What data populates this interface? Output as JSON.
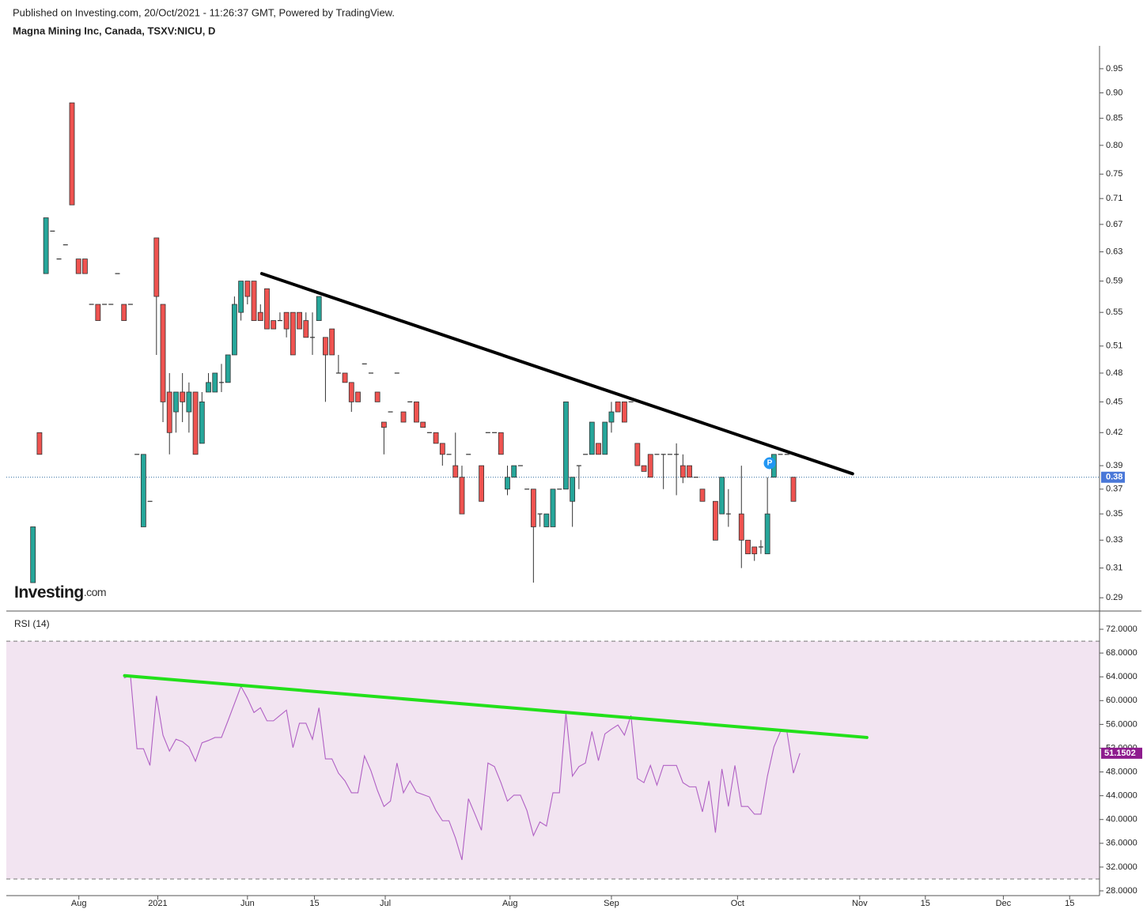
{
  "header": {
    "published": "Published on Investing.com, 20/Oct/2021 - 11:26:37 GMT, Powered by TradingView.",
    "title": "Magna Mining Inc, Canada, TSXV:NICU, D"
  },
  "logo": {
    "main": "Investing",
    "suffix": ".com"
  },
  "chart_data": [
    {
      "type": "candlestick",
      "log_scale": true,
      "up_color": "#26a69a",
      "down_color": "#ef5350",
      "xlim": [
        -4.1,
        164.1
      ],
      "ylim": [
        0.285,
        1.0
      ],
      "yticks": [
        0.95,
        {
          "value": 0.9,
          "label": "0.90"
        },
        0.85,
        {
          "value": 0.8,
          "label": "0.80"
        },
        0.75,
        0.71,
        0.67,
        0.63,
        0.59,
        0.55,
        0.51,
        0.48,
        0.45,
        0.42,
        0.39,
        0.37,
        0.35,
        0.33,
        0.31,
        0.29
      ],
      "x": [
        0,
        1,
        2,
        3,
        4,
        5,
        6,
        7,
        8,
        9,
        10,
        11,
        12,
        13,
        14,
        15,
        16,
        17,
        18,
        19,
        20,
        21,
        22,
        23,
        24,
        25,
        26,
        27,
        28,
        29,
        30,
        31,
        32,
        33,
        34,
        35,
        36,
        37,
        38,
        39,
        40,
        41,
        42,
        43,
        44,
        45,
        46,
        47,
        48,
        49,
        50,
        51,
        52,
        53,
        54,
        55,
        56,
        57,
        58,
        59,
        60,
        61,
        62,
        63,
        64,
        65,
        66,
        67,
        69,
        70,
        71,
        72,
        73,
        74,
        75,
        76,
        77,
        78,
        79,
        80,
        81,
        82,
        83,
        84,
        85,
        86,
        87,
        88,
        89,
        90,
        91,
        92,
        93,
        94,
        95,
        96,
        97,
        98,
        99,
        100,
        101,
        102,
        103,
        105,
        106,
        107,
        109,
        110,
        111,
        112,
        113,
        114,
        115,
        116,
        117
      ],
      "open": [
        0.3,
        0.42,
        0.6,
        0.66,
        0.62,
        0.64,
        0.88,
        0.62,
        0.62,
        0.56,
        0.56,
        0.56,
        0.56,
        0.6,
        0.56,
        0.56,
        0.4,
        0.34,
        0.36,
        0.65,
        0.56,
        0.46,
        0.44,
        0.46,
        0.44,
        0.46,
        0.41,
        0.46,
        0.46,
        0.47,
        0.47,
        0.5,
        0.55,
        0.59,
        0.59,
        0.55,
        0.58,
        0.54,
        0.54,
        0.55,
        0.55,
        0.55,
        0.54,
        0.52,
        0.54,
        0.52,
        0.53,
        0.48,
        0.48,
        0.47,
        0.46,
        0.49,
        0.48,
        0.46,
        0.43,
        0.44,
        0.48,
        0.44,
        0.45,
        0.45,
        0.43,
        0.42,
        0.42,
        0.41,
        0.4,
        0.39,
        0.38,
        0.4,
        0.39,
        0.42,
        0.42,
        0.42,
        0.37,
        0.38,
        0.39,
        0.37,
        0.37,
        0.35,
        0.34,
        0.34,
        0.37,
        0.37,
        0.36,
        0.39,
        0.4,
        0.4,
        0.41,
        0.4,
        0.43,
        0.45,
        0.45,
        0.45,
        0.41,
        0.39,
        0.4,
        0.4,
        0.4,
        0.4,
        0.4,
        0.39,
        0.39,
        0.38,
        0.37,
        0.36,
        0.35,
        0.35,
        0.35,
        0.33,
        0.325,
        0.325,
        0.32,
        0.38,
        0.4,
        0.4,
        0.38
      ],
      "high": [
        0.34,
        0.42,
        0.68,
        0.66,
        0.62,
        0.64,
        0.88,
        0.62,
        0.62,
        0.56,
        0.56,
        0.56,
        0.56,
        0.6,
        0.56,
        0.56,
        0.4,
        0.4,
        0.36,
        0.65,
        0.56,
        0.48,
        0.46,
        0.48,
        0.47,
        0.46,
        0.46,
        0.48,
        0.48,
        0.49,
        0.5,
        0.57,
        0.59,
        0.59,
        0.59,
        0.56,
        0.58,
        0.54,
        0.55,
        0.55,
        0.55,
        0.55,
        0.55,
        0.55,
        0.57,
        0.52,
        0.53,
        0.5,
        0.48,
        0.47,
        0.46,
        0.49,
        0.48,
        0.46,
        0.43,
        0.44,
        0.48,
        0.44,
        0.45,
        0.45,
        0.43,
        0.42,
        0.42,
        0.41,
        0.4,
        0.42,
        0.39,
        0.4,
        0.39,
        0.42,
        0.42,
        0.42,
        0.39,
        0.39,
        0.39,
        0.37,
        0.37,
        0.35,
        0.35,
        0.37,
        0.37,
        0.45,
        0.38,
        0.39,
        0.4,
        0.43,
        0.41,
        0.43,
        0.45,
        0.45,
        0.45,
        0.45,
        0.41,
        0.39,
        0.4,
        0.4,
        0.4,
        0.4,
        0.41,
        0.4,
        0.39,
        0.38,
        0.37,
        0.36,
        0.38,
        0.37,
        0.39,
        0.33,
        0.325,
        0.33,
        0.38,
        0.4,
        0.4,
        0.4,
        0.38
      ],
      "low": [
        0.3,
        0.4,
        0.6,
        0.66,
        0.62,
        0.64,
        0.7,
        0.6,
        0.6,
        0.56,
        0.54,
        0.56,
        0.56,
        0.6,
        0.54,
        0.56,
        0.4,
        0.34,
        0.36,
        0.5,
        0.43,
        0.4,
        0.42,
        0.43,
        0.42,
        0.4,
        0.41,
        0.46,
        0.46,
        0.46,
        0.47,
        0.5,
        0.54,
        0.56,
        0.54,
        0.54,
        0.53,
        0.53,
        0.54,
        0.52,
        0.5,
        0.53,
        0.52,
        0.5,
        0.54,
        0.45,
        0.5,
        0.48,
        0.47,
        0.44,
        0.45,
        0.49,
        0.48,
        0.45,
        0.4,
        0.44,
        0.48,
        0.43,
        0.45,
        0.43,
        0.425,
        0.42,
        0.41,
        0.39,
        0.4,
        0.38,
        0.35,
        0.4,
        0.36,
        0.42,
        0.42,
        0.4,
        0.365,
        0.38,
        0.39,
        0.37,
        0.3,
        0.34,
        0.34,
        0.34,
        0.37,
        0.37,
        0.34,
        0.37,
        0.4,
        0.4,
        0.4,
        0.4,
        0.42,
        0.44,
        0.43,
        0.45,
        0.39,
        0.385,
        0.38,
        0.4,
        0.37,
        0.4,
        0.365,
        0.375,
        0.38,
        0.38,
        0.36,
        0.33,
        0.35,
        0.34,
        0.31,
        0.32,
        0.315,
        0.32,
        0.32,
        0.38,
        0.4,
        0.4,
        0.36
      ],
      "close": [
        0.34,
        0.4,
        0.68,
        0.66,
        0.62,
        0.64,
        0.7,
        0.6,
        0.6,
        0.56,
        0.54,
        0.56,
        0.56,
        0.6,
        0.54,
        0.56,
        0.4,
        0.4,
        0.36,
        0.57,
        0.45,
        0.42,
        0.46,
        0.45,
        0.46,
        0.4,
        0.45,
        0.47,
        0.48,
        0.47,
        0.5,
        0.56,
        0.59,
        0.57,
        0.54,
        0.54,
        0.53,
        0.53,
        0.54,
        0.53,
        0.5,
        0.53,
        0.52,
        0.52,
        0.57,
        0.5,
        0.5,
        0.48,
        0.47,
        0.45,
        0.45,
        0.49,
        0.48,
        0.45,
        0.425,
        0.44,
        0.48,
        0.43,
        0.45,
        0.43,
        0.425,
        0.42,
        0.41,
        0.4,
        0.4,
        0.38,
        0.35,
        0.4,
        0.36,
        0.42,
        0.42,
        0.4,
        0.38,
        0.39,
        0.39,
        0.37,
        0.34,
        0.35,
        0.35,
        0.37,
        0.37,
        0.45,
        0.38,
        0.39,
        0.4,
        0.43,
        0.4,
        0.43,
        0.44,
        0.44,
        0.43,
        0.45,
        0.39,
        0.385,
        0.38,
        0.4,
        0.4,
        0.4,
        0.4,
        0.38,
        0.38,
        0.38,
        0.36,
        0.33,
        0.38,
        0.35,
        0.33,
        0.32,
        0.32,
        0.325,
        0.35,
        0.4,
        0.4,
        0.4,
        0.36
      ],
      "trendline": {
        "x": [
          35.2,
          126.1
        ],
        "y": [
          0.6,
          0.383
        ],
        "color": "#000000"
      },
      "last_price": 0.38,
      "last_price_color": "#4a78d8",
      "marker_label": "P"
    },
    {
      "type": "line",
      "title": "RSI (14)",
      "xlim": [
        -4.1,
        164.1
      ],
      "ylim": [
        27.6,
        74.4
      ],
      "xticks": [
        {
          "value": 7.06,
          "label": "Aug"
        },
        {
          "value": 19.2,
          "label": "2021"
        },
        {
          "value": 33,
          "label": "Jun"
        },
        {
          "value": 43.3,
          "label": "15"
        },
        {
          "value": 54.2,
          "label": "Jul"
        },
        {
          "value": 73.4,
          "label": "Aug"
        },
        {
          "value": 89,
          "label": "Sep"
        },
        {
          "value": 108.4,
          "label": "Oct"
        },
        {
          "value": 127.2,
          "label": "Nov"
        },
        {
          "value": 137.3,
          "label": "15"
        },
        {
          "value": 149.3,
          "label": "Dec"
        },
        {
          "value": 159.5,
          "label": "15"
        }
      ],
      "yticks": [
        {
          "value": 72,
          "label": "72.0000"
        },
        {
          "value": 68,
          "label": "68.0000"
        },
        {
          "value": 64,
          "label": "64.0000"
        },
        {
          "value": 60,
          "label": "60.0000"
        },
        {
          "value": 56,
          "label": "56.0000"
        },
        {
          "value": 52,
          "label": "52.0000"
        },
        {
          "value": 48,
          "label": "48.0000"
        },
        {
          "value": 44,
          "label": "44.0000"
        },
        {
          "value": 40,
          "label": "40.0000"
        },
        {
          "value": 36,
          "label": "36.0000"
        },
        {
          "value": 32,
          "label": "32.0000"
        },
        {
          "value": 28,
          "label": "28.0000"
        }
      ],
      "bands": [
        30,
        70
      ],
      "band_color": "#f2e4f1",
      "x": [
        14,
        15,
        16,
        17,
        18,
        19,
        20,
        21,
        22,
        23,
        24,
        25,
        26,
        27,
        28,
        29,
        30,
        31,
        32,
        33,
        34,
        35,
        36,
        37,
        38,
        39,
        40,
        41,
        42,
        43,
        44,
        45,
        46,
        47,
        48,
        49,
        50,
        51,
        52,
        53,
        54,
        55,
        56,
        57,
        58,
        59,
        60,
        61,
        62,
        63,
        64,
        65,
        66,
        67,
        68,
        69,
        70,
        71,
        72,
        73,
        74,
        75,
        76,
        77,
        78,
        79,
        80,
        81,
        82,
        83,
        84,
        85,
        86,
        87,
        88,
        89,
        90,
        91,
        92,
        93,
        94,
        95,
        96,
        97,
        98,
        99,
        100,
        101,
        102,
        103,
        104,
        105,
        106,
        107,
        108,
        109,
        110,
        111,
        112,
        113,
        114,
        115,
        116,
        117,
        118
      ],
      "series": [
        {
          "color": "#b060c4",
          "values": [
            63.8,
            64.2,
            51.9,
            51.9,
            49.1,
            60.8,
            54.2,
            51.5,
            53.5,
            53.1,
            52.2,
            49.8,
            52.9,
            53.3,
            53.8,
            53.8,
            56.6,
            59.5,
            62.4,
            60.4,
            58.0,
            58.8,
            56.6,
            56.6,
            57.5,
            58.4,
            52.1,
            56.2,
            56.2,
            53.5,
            58.8,
            50.2,
            50.2,
            47.8,
            46.5,
            44.5,
            44.5,
            50.7,
            48.2,
            44.9,
            42.2,
            43.1,
            49.5,
            44.5,
            46.5,
            44.6,
            44.2,
            43.8,
            41.5,
            39.8,
            39.8,
            36.9,
            33.2,
            43.5,
            40.9,
            38.2,
            49.5,
            48.9,
            46.2,
            43.1,
            44.1,
            44.1,
            41.5,
            37.3,
            39.6,
            38.9,
            44.5,
            44.5,
            57.9,
            47.3,
            48.9,
            49.5,
            54.8,
            49.9,
            54.4,
            55.2,
            55.9,
            54.2,
            57.5,
            46.9,
            46.2,
            49.1,
            45.8,
            49.1,
            49.1,
            49.1,
            46.2,
            45.5,
            45.5,
            41.3,
            46.5,
            37.8,
            48.5,
            42.2,
            49.1,
            42.2,
            42.2,
            40.9,
            40.9,
            47.3,
            52.2,
            54.8,
            54.8,
            47.8,
            51.1502
          ]
        }
      ],
      "last_value_color": "#8e1c8e",
      "trendline": {
        "x": [
          14.1,
          128.3
        ],
        "y": [
          64.2,
          53.8
        ],
        "color": "#22e01a"
      }
    }
  ]
}
